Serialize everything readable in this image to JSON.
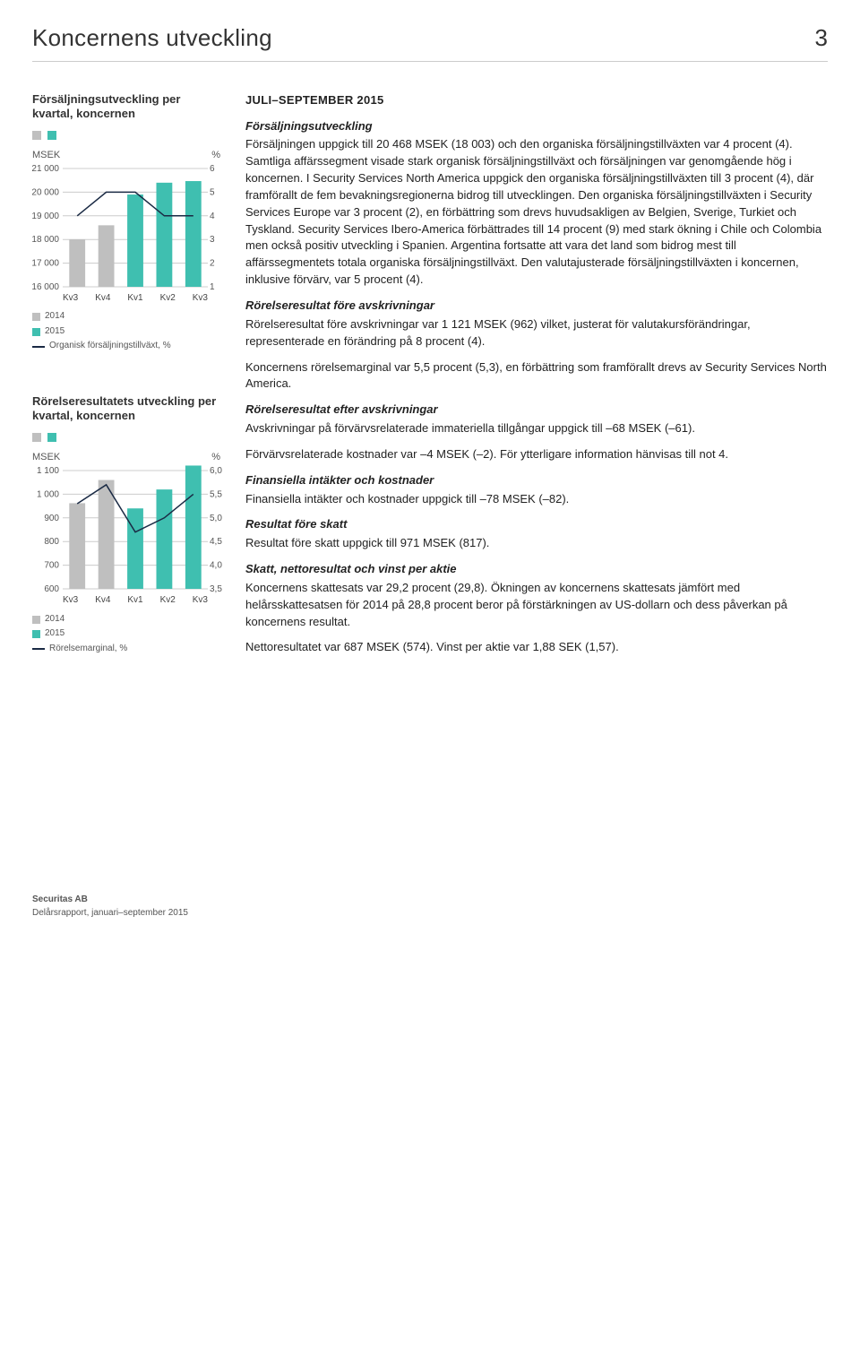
{
  "header": {
    "title": "Koncernens utveckling",
    "page_number": "3"
  },
  "chart1": {
    "title": "Försäljningsutveckling per kvartal, koncernen",
    "type": "bar-line",
    "left_unit": "MSEK",
    "right_unit": "%",
    "left_ticks": [
      16000,
      17000,
      18000,
      19000,
      20000,
      21000
    ],
    "right_ticks": [
      1,
      2,
      3,
      4,
      5,
      6
    ],
    "left_min": 16000,
    "left_max": 21000,
    "right_min": 1,
    "right_max": 6,
    "categories": [
      "Kv3",
      "Kv4",
      "Kv1",
      "Kv2",
      "Kv3"
    ],
    "bar_2014": [
      18003,
      18600,
      null,
      null,
      null
    ],
    "bar_2015": [
      null,
      null,
      19900,
      20400,
      20468
    ],
    "line_values": [
      4,
      5,
      5,
      4,
      4
    ],
    "color_2014": "#bfbfbf",
    "color_2015": "#3fbfb0",
    "color_line": "#1a2a44",
    "grid_color": "#cccccc",
    "legend": {
      "y2014": "2014",
      "y2015": "2015",
      "line": "Organisk försäljningstillväxt, %"
    },
    "axis_fontsize": 10
  },
  "chart2": {
    "title": "Rörelseresultatets utveckling per kvartal, koncernen",
    "type": "bar-line",
    "left_unit": "MSEK",
    "right_unit": "%",
    "left_ticks": [
      600,
      700,
      800,
      900,
      1000,
      1100
    ],
    "right_ticks": [
      "3,5",
      "4,0",
      "4,5",
      "5,0",
      "5,5",
      "6,0"
    ],
    "left_min": 600,
    "left_max": 1100,
    "right_min": 3.5,
    "right_max": 6.0,
    "categories": [
      "Kv3",
      "Kv4",
      "Kv1",
      "Kv2",
      "Kv3"
    ],
    "bar_2014": [
      962,
      1060,
      null,
      null,
      null
    ],
    "bar_2015": [
      null,
      null,
      940,
      1020,
      1121
    ],
    "line_values": [
      5.3,
      5.7,
      4.7,
      5.0,
      5.5
    ],
    "color_2014": "#bfbfbf",
    "color_2015": "#3fbfb0",
    "color_line": "#1a2a44",
    "grid_color": "#cccccc",
    "legend": {
      "y2014": "2014",
      "y2015": "2015",
      "line": "Rörelsemarginal, %"
    },
    "axis_fontsize": 10
  },
  "content": {
    "period_heading": "JULI–SEPTEMBER 2015",
    "sec_sales_h": "Försäljningsutveckling",
    "sec_sales_p": "Försäljningen uppgick till 20 468 MSEK (18 003) och den organiska försäljningstillväxten var 4 procent (4). Samtliga affärssegment visade stark organisk försäljningstillväxt och försäljningen var genomgående hög i koncernen. I Security Services North America uppgick den organiska försäljningstillväxten till 3 procent (4), där framförallt de fem bevakningsregionerna bidrog till utvecklingen. Den organiska försäljningstillväxten i Security Services Europe var 3 procent (2), en förbättring som drevs huvudsakligen av Belgien, Sverige, Turkiet och Tyskland. Security Services Ibero-America förbättrades till 14 procent (9) med stark ökning i Chile och Colombia men också positiv utveckling i Spanien. Argentina fortsatte att vara det land som bidrog mest till affärssegmentets totala organiska försäljningstillväxt. Den valutajusterade försäljningstillväxten i koncernen, inklusive förvärv, var 5 procent (4).",
    "sec_op_before_h": "Rörelseresultat före avskrivningar",
    "sec_op_before_p": "Rörelseresultat före avskrivningar var 1 121 MSEK (962) vilket, justerat för valutakursförändringar, representerade en förändring på 8 procent (4).",
    "sec_margin_p": "Koncernens rörelsemarginal var 5,5 procent (5,3), en förbättring som framförallt drevs av Security Services North America.",
    "sec_op_after_h": "Rörelseresultat efter avskrivningar",
    "sec_op_after_p": "Avskrivningar på förvärvsrelaterade immateriella tillgångar uppgick till –68 MSEK (–61).",
    "sec_acq_p": "Förvärvsrelaterade kostnader var –4 MSEK (–2). För ytterligare information hänvisas till not 4.",
    "sec_fin_h": "Finansiella intäkter och kostnader",
    "sec_fin_p": "Finansiella intäkter och kostnader uppgick till –78 MSEK (–82).",
    "sec_pbt_h": "Resultat före skatt",
    "sec_pbt_p": "Resultat före skatt uppgick till 971 MSEK (817).",
    "sec_tax_h": "Skatt, nettoresultat och vinst per aktie",
    "sec_tax_p": "Koncernens skattesats var 29,2 procent (29,8). Ökningen av koncernens skattesats jämfört med helårsskattesatsen för 2014 på 28,8 procent beror på förstärkningen av US-dollarn och dess påverkan på koncernens resultat.",
    "sec_net_p": "Nettoresultatet var 687 MSEK (574). Vinst per aktie var 1,88 SEK (1,57)."
  },
  "footer": {
    "line1": "Securitas AB",
    "line2": "Delårsrapport, januari–september 2015"
  }
}
